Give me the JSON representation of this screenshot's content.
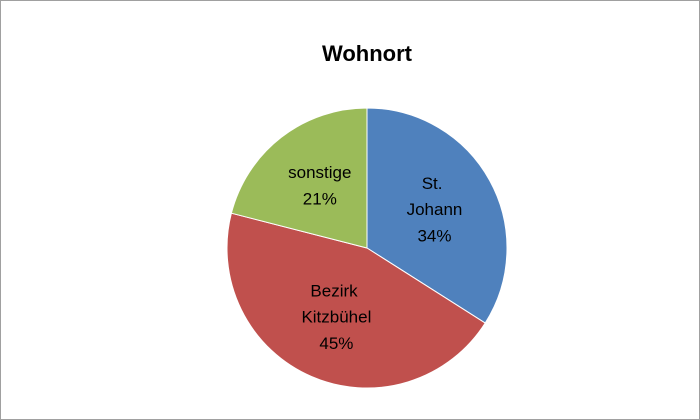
{
  "chart_data": {
    "type": "pie",
    "title": "Wohnort",
    "categories": [
      "St. Johann",
      "Bezirk Kitzbühel",
      "sonstige"
    ],
    "values": [
      34,
      45,
      21
    ],
    "value_labels": [
      "34%",
      "45%",
      "21%"
    ],
    "colors": [
      "#4f81bd",
      "#c0504d",
      "#9bbb59"
    ]
  }
}
